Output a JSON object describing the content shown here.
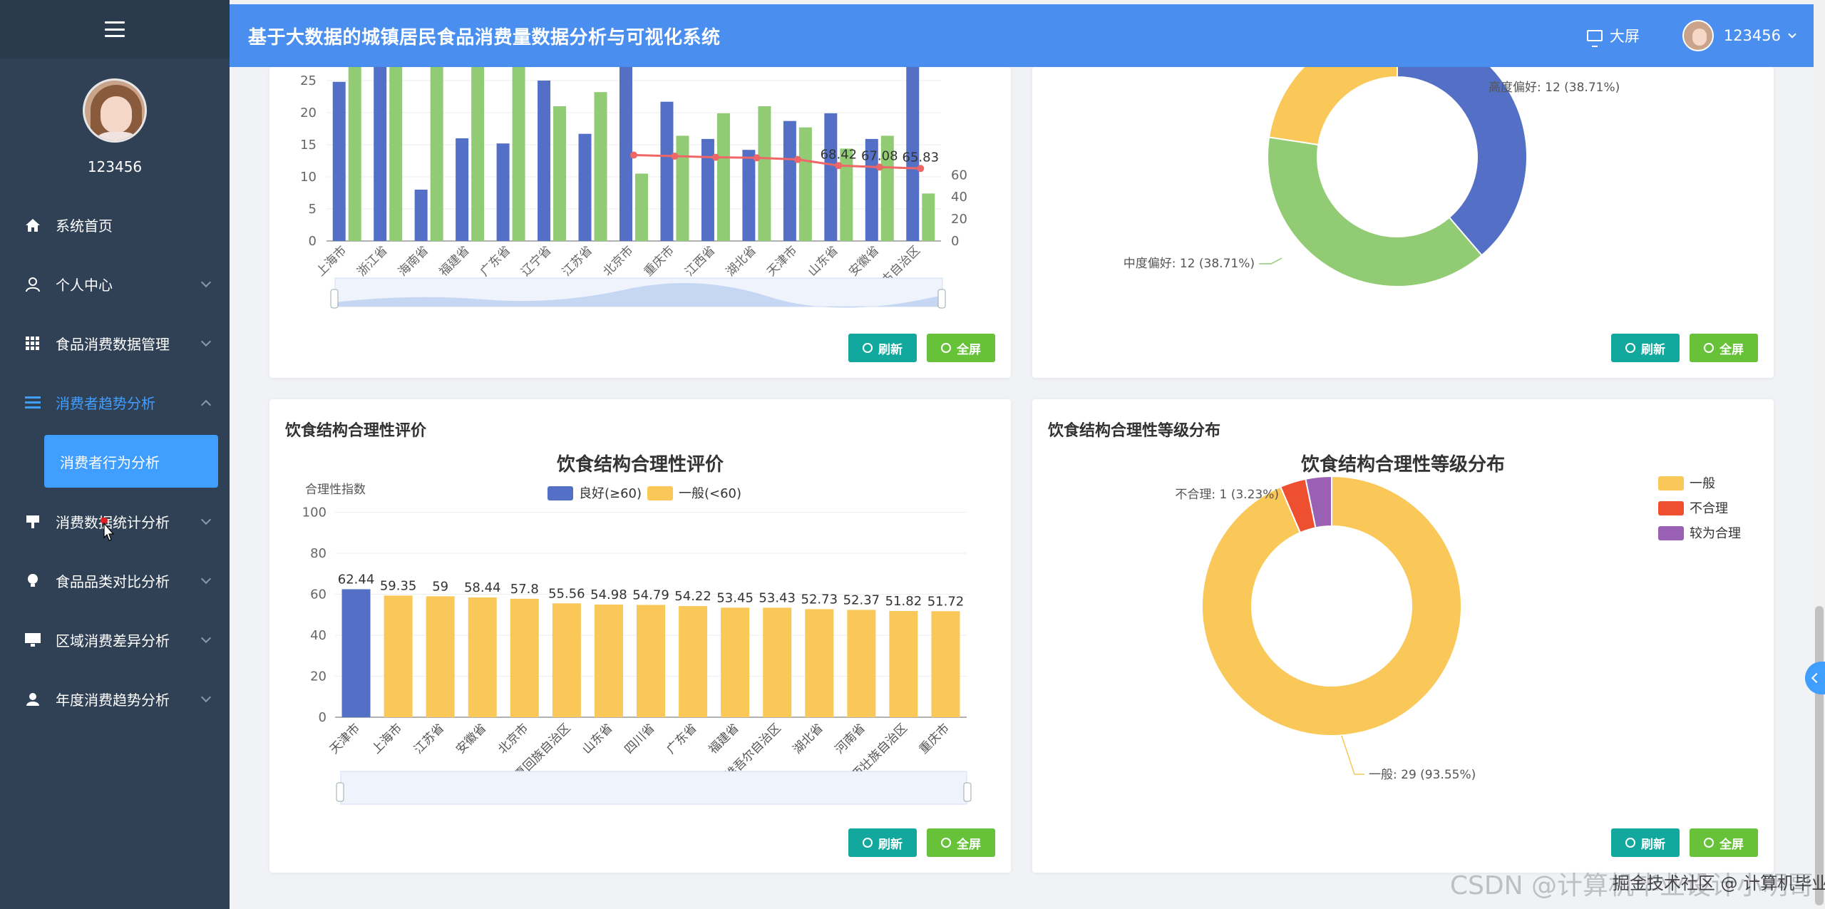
{
  "sidebar": {
    "username": "123456",
    "items": [
      {
        "label": "系统首页",
        "icon": "home-icon"
      },
      {
        "label": "个人中心",
        "icon": "user-icon"
      },
      {
        "label": "食品消费数据管理",
        "icon": "grid-icon"
      },
      {
        "label": "消费者趋势分析",
        "icon": "list-icon"
      },
      {
        "label": "消费数据统计分析",
        "icon": "cup-icon"
      },
      {
        "label": "食品品类对比分析",
        "icon": "bulb-icon"
      },
      {
        "label": "区域消费差异分析",
        "icon": "monitor-icon"
      },
      {
        "label": "年度消费趋势分析",
        "icon": "person-icon"
      }
    ],
    "sub_item": "消费者行为分析"
  },
  "header": {
    "title": "基于大数据的城镇居民食品消费量数据分析与可视化系统",
    "screen_label": "大屏",
    "user_label": "123456"
  },
  "buttons": {
    "refresh": "刷新",
    "fullscreen": "全屏"
  },
  "card_titles": {
    "bottom_left": "饮食结构合理性评价",
    "bottom_right": "饮食结构合理性等级分布"
  },
  "chart_data": [
    {
      "type": "bar",
      "title": "",
      "categories": [
        "上海市",
        "浙江省",
        "海南省",
        "福建省",
        "广东省",
        "辽宁省",
        "江苏省",
        "北京市",
        "重庆市",
        "江西省",
        "湖北省",
        "天津市",
        "山东省",
        "安徽省",
        "内蒙古自治区"
      ],
      "series": [
        {
          "values": [
            24.8,
            27.5,
            8,
            16,
            15.2,
            25,
            16.7,
            27.5,
            21.7,
            15.9,
            14.2,
            18.7,
            19.9,
            15.9,
            27.5
          ]
        },
        {
          "values": [
            27.5,
            27.5,
            27.5,
            27.5,
            27.5,
            21,
            23.2,
            10.5,
            16.4,
            19.9,
            21,
            17.7,
            14.4,
            16.4,
            7.4
          ]
        },
        {
          "values": [
            null,
            null,
            null,
            null,
            null,
            null,
            null,
            78,
            77,
            76,
            75.5,
            74,
            68.42,
            67.08,
            65.83
          ]
        }
      ],
      "point_labels": [
        "68.42",
        "67.08",
        "65.83"
      ],
      "yticks_left": [
        "0",
        "5",
        "10",
        "15",
        "20",
        "25"
      ],
      "yticks_right": [
        "0",
        "20",
        "40",
        "60"
      ]
    },
    {
      "type": "pie",
      "slices": [
        {
          "label": "高度偏好: 12 (38.71%)",
          "value": 12,
          "color": "#5470c6"
        },
        {
          "label": "中度偏好: 12 (38.71%)",
          "value": 12,
          "color": "#91cc75"
        },
        {
          "label": "",
          "value": 7,
          "color": "#fac858"
        }
      ]
    },
    {
      "type": "bar",
      "title": "饮食结构合理性评价",
      "ylabel": "合理性指数",
      "legend": [
        {
          "name": "良好(≥60)",
          "color": "#5470c6"
        },
        {
          "name": "一般(<60)",
          "color": "#fac858"
        }
      ],
      "ylim": [
        0,
        100
      ],
      "yticks": [
        "0",
        "20",
        "40",
        "60",
        "80",
        "100"
      ],
      "categories": [
        "天津市",
        "上海市",
        "江苏省",
        "安徽省",
        "北京市",
        "宁夏回族自治区",
        "山东省",
        "四川省",
        "广东省",
        "福建省",
        "新疆维吾尔自治区",
        "湖北省",
        "河南省",
        "广西壮族自治区",
        "重庆市"
      ],
      "values": [
        62.44,
        59.35,
        59,
        58.44,
        57.8,
        55.56,
        54.98,
        54.79,
        54.22,
        53.45,
        53.43,
        52.73,
        52.37,
        51.82,
        51.72
      ],
      "value_labels": [
        "62.44",
        "59.35",
        "59",
        "58.44",
        "57.8",
        "55.56",
        "54.98",
        "54.79",
        "54.22",
        "53.45",
        "53.43",
        "52.73",
        "52.37",
        "51.82",
        "51.72"
      ]
    },
    {
      "type": "pie",
      "title": "饮食结构合理性等级分布",
      "legend": [
        {
          "name": "一般",
          "color": "#fac858"
        },
        {
          "name": "不合理",
          "color": "#ee4f2f"
        },
        {
          "name": "较为合理",
          "color": "#9a60b4"
        }
      ],
      "slices": [
        {
          "label": "一般: 29 (93.55%)",
          "value": 29,
          "color": "#fac858"
        },
        {
          "label": "不合理: 1 (3.23%)",
          "value": 1,
          "color": "#ee4f2f"
        },
        {
          "label": "",
          "value": 1,
          "color": "#9a60b4"
        }
      ]
    }
  ],
  "watermark": {
    "text1": "CSDN @计算机毕业设计小明哥",
    "text2": "掘金技术社区 @ 计算机毕业设计小明哥"
  }
}
